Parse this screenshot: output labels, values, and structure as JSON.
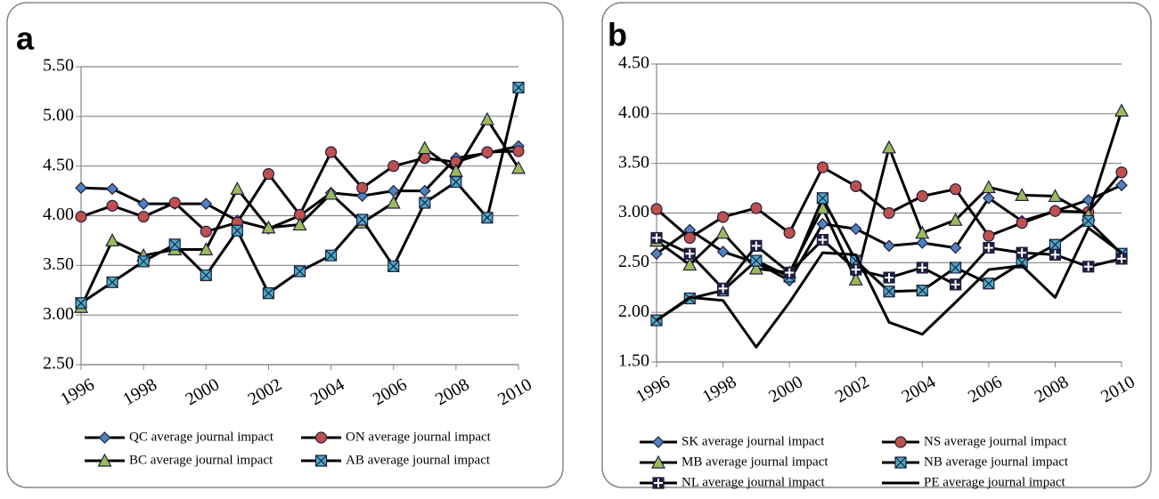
{
  "chart_data": [
    {
      "type": "line",
      "label": "a",
      "x": [
        1996,
        1997,
        1998,
        1999,
        2000,
        2001,
        2002,
        2003,
        2004,
        2005,
        2006,
        2007,
        2008,
        2009,
        2010
      ],
      "xlim": [
        1996,
        2010
      ],
      "xticks": [
        1996,
        1998,
        2000,
        2002,
        2004,
        2006,
        2008,
        2010
      ],
      "ylim": [
        2.5,
        5.5
      ],
      "yticks": [
        {
          "value": 2.5,
          "label": "2.50"
        },
        {
          "value": 3,
          "label": "3.00"
        },
        {
          "value": 3.5,
          "label": "3.50"
        },
        {
          "value": 4,
          "label": "4.00"
        },
        {
          "value": 4.5,
          "label": "4.50"
        },
        {
          "value": 5,
          "label": "5.00"
        },
        {
          "value": 5.5,
          "label": "5.50"
        }
      ],
      "grid": true,
      "series": [
        {
          "name": "QC average journal impact",
          "color": "#4f81bd",
          "marker": "diamond",
          "values": [
            4.28,
            4.27,
            4.12,
            4.12,
            4.12,
            3.95,
            3.87,
            4.0,
            4.23,
            4.2,
            4.25,
            4.25,
            4.58,
            4.63,
            4.7
          ]
        },
        {
          "name": "ON average journal impact",
          "color": "#c0504d",
          "marker": "circle",
          "values": [
            3.99,
            4.1,
            3.99,
            4.13,
            3.84,
            3.93,
            4.42,
            4.01,
            4.64,
            4.28,
            4.5,
            4.58,
            4.54,
            4.64,
            4.65
          ]
        },
        {
          "name": "BC average journal impact",
          "color": "#9bbb59",
          "marker": "triangle",
          "values": [
            3.08,
            3.75,
            3.6,
            3.66,
            3.66,
            4.27,
            3.88,
            3.91,
            4.22,
            3.93,
            4.13,
            4.68,
            4.45,
            4.97,
            4.48
          ]
        },
        {
          "name": "AB average journal impact",
          "color": "#4bacc6",
          "marker": "squarex",
          "values": [
            3.12,
            3.33,
            3.54,
            3.71,
            3.4,
            3.85,
            3.22,
            3.44,
            3.6,
            3.96,
            3.49,
            4.13,
            4.34,
            3.98,
            5.29
          ]
        }
      ]
    },
    {
      "type": "line",
      "label": "b",
      "x": [
        1996,
        1997,
        1998,
        1999,
        2000,
        2001,
        2002,
        2003,
        2004,
        2005,
        2006,
        2007,
        2008,
        2009,
        2010
      ],
      "xlim": [
        1996,
        2010
      ],
      "xticks": [
        1996,
        1998,
        2000,
        2002,
        2004,
        2006,
        2008,
        2010
      ],
      "ylim": [
        1.5,
        4.5
      ],
      "yticks": [
        {
          "value": 1.5,
          "label": "1.50"
        },
        {
          "value": 2,
          "label": "2.00"
        },
        {
          "value": 2.5,
          "label": "2.50"
        },
        {
          "value": 3,
          "label": "3.00"
        },
        {
          "value": 3.5,
          "label": "3.50"
        },
        {
          "value": 4,
          "label": "4.00"
        },
        {
          "value": 4.5,
          "label": "4.50"
        }
      ],
      "grid": true,
      "series": [
        {
          "name": "SK average journal impact",
          "color": "#4f81bd",
          "marker": "diamond",
          "values": [
            2.59,
            2.83,
            2.61,
            2.5,
            2.32,
            2.89,
            2.84,
            2.67,
            2.7,
            2.65,
            3.15,
            2.92,
            3.02,
            3.13,
            3.28
          ]
        },
        {
          "name": "NS average journal impact",
          "color": "#c0504d",
          "marker": "circle",
          "values": [
            3.04,
            2.75,
            2.96,
            3.05,
            2.8,
            3.46,
            3.27,
            3.0,
            3.17,
            3.24,
            2.77,
            2.9,
            3.02,
            3.01,
            3.41
          ]
        },
        {
          "name": "MB average journal impact",
          "color": "#9bbb59",
          "marker": "triangle",
          "values": [
            2.72,
            2.48,
            2.8,
            2.44,
            2.4,
            3.05,
            2.33,
            3.66,
            2.8,
            2.93,
            3.26,
            3.18,
            3.17,
            2.98,
            4.03
          ]
        },
        {
          "name": "NB average journal impact",
          "color": "#4bacc6",
          "marker": "squarex",
          "values": [
            1.92,
            2.14,
            2.22,
            2.52,
            2.36,
            3.15,
            2.52,
            2.21,
            2.22,
            2.45,
            2.29,
            2.5,
            2.68,
            2.92,
            2.59
          ]
        },
        {
          "name": "NL average journal impact",
          "color": "#1f1f3f",
          "marker": "squareplus",
          "values": [
            2.75,
            2.59,
            2.24,
            2.67,
            2.4,
            2.73,
            2.43,
            2.35,
            2.45,
            2.28,
            2.65,
            2.6,
            2.58,
            2.46,
            2.54
          ]
        },
        {
          "name": "PE average journal impact",
          "color": "#000000",
          "marker": "none",
          "values": [
            1.92,
            2.15,
            2.12,
            1.65,
            2.1,
            2.6,
            2.58,
            1.9,
            1.78,
            2.1,
            2.43,
            2.47,
            2.15,
            2.85,
            2.6
          ]
        }
      ]
    }
  ]
}
